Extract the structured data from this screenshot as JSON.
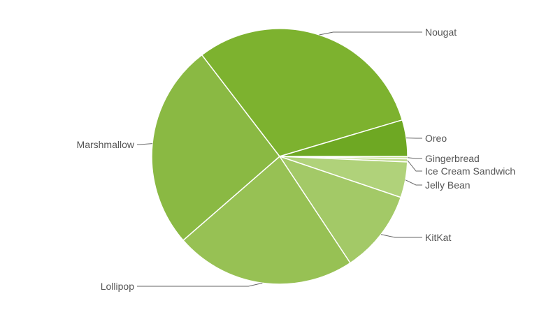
{
  "chart_data": {
    "type": "pie",
    "start_angle": "3 o'clock",
    "direction": "clockwise",
    "slices": [
      {
        "label": "Gingerbread",
        "value": 0.3,
        "color": "#cde4a2"
      },
      {
        "label": "Ice Cream Sandwich",
        "value": 0.4,
        "color": "#c0db8e"
      },
      {
        "label": "Jelly Bean",
        "value": 4.5,
        "color": "#b0d27a"
      },
      {
        "label": "KitKat",
        "value": 10.5,
        "color": "#a3c967"
      },
      {
        "label": "Lollipop",
        "value": 22.9,
        "color": "#97c154"
      },
      {
        "label": "Marshmallow",
        "value": 26.0,
        "color": "#8ab943"
      },
      {
        "label": "Nougat",
        "value": 30.8,
        "color": "#7db22f"
      },
      {
        "label": "Oreo",
        "value": 4.6,
        "color": "#6ea823"
      }
    ],
    "legend": "none (outside leader-line labels)"
  }
}
